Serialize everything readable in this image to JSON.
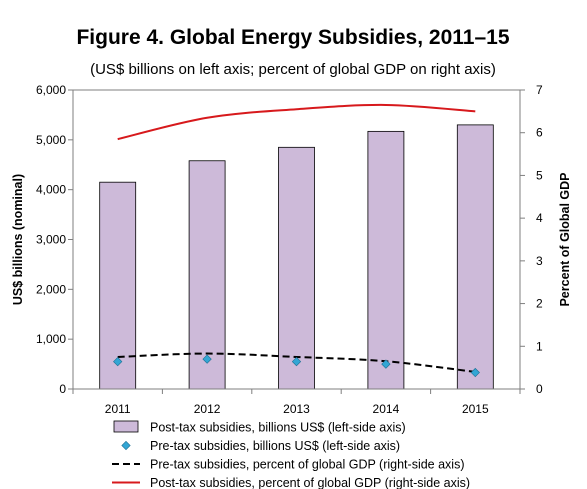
{
  "chart_data": {
    "type": "bar",
    "title": "Figure 4. Global Energy Subsidies, 2011–15",
    "subtitle": "(US$ billions on left axis; percent of global GDP on right axis)",
    "categories": [
      "2011",
      "2012",
      "2013",
      "2014",
      "2015"
    ],
    "y_left": {
      "label": "US$ billions (nominal)",
      "lim": [
        0,
        6000
      ],
      "ticks": [
        "0",
        "1,000",
        "2,000",
        "3,000",
        "4,000",
        "5,000",
        "6,000"
      ],
      "tick_values": [
        0,
        1000,
        2000,
        3000,
        4000,
        5000,
        6000
      ]
    },
    "y_right": {
      "label": "Percent of Global GDP",
      "lim": [
        0,
        7
      ],
      "ticks": [
        "0",
        "1",
        "2",
        "3",
        "4",
        "5",
        "6",
        "7"
      ],
      "tick_values": [
        0,
        1,
        2,
        3,
        4,
        5,
        6,
        7
      ]
    },
    "grid": false,
    "legend_position": "bottom",
    "series": [
      {
        "name": "Post-tax subsidies, billions US$ (left-side axis)",
        "kind": "bar",
        "axis": "left",
        "color": "#CDBAD9",
        "values": [
          4150,
          4580,
          4850,
          5170,
          5300
        ]
      },
      {
        "name": "Pre-tax subsidies, billions US$ (left-side axis)",
        "kind": "marker",
        "axis": "left",
        "color": "#33A6D4",
        "values": [
          550,
          600,
          550,
          500,
          330
        ]
      },
      {
        "name": "Pre-tax subsidies, percent of global GDP (right-side axis)",
        "kind": "line-dashed",
        "axis": "right",
        "color": "#000000",
        "values": [
          0.75,
          0.83,
          0.75,
          0.65,
          0.4
        ]
      },
      {
        "name": "Post-tax subsidies, percent of global GDP (right-side axis)",
        "kind": "line",
        "axis": "right",
        "color": "#D7191C",
        "values": [
          5.85,
          6.35,
          6.55,
          6.65,
          6.5
        ]
      }
    ]
  }
}
